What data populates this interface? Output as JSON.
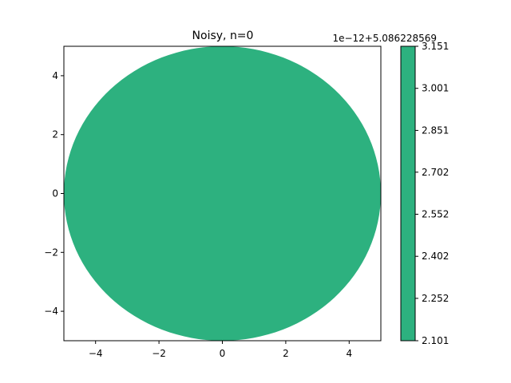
{
  "chart_data": {
    "type": "heatmap",
    "title": "Noisy, n=0",
    "xlabel": "",
    "ylabel": "",
    "xlim": [
      -5,
      5
    ],
    "ylim": [
      -5,
      5
    ],
    "x_ticks": [
      -4,
      -2,
      0,
      2,
      4
    ],
    "y_ticks": [
      -4,
      -2,
      0,
      2,
      4
    ],
    "x_tick_labels": [
      "−4",
      "−2",
      "0",
      "2",
      "4"
    ],
    "y_tick_labels": [
      "−4",
      "−2",
      "0",
      "2",
      "4"
    ],
    "region": {
      "shape": "disk",
      "center": [
        0,
        0
      ],
      "radius": 5
    },
    "field_value_offset_label": "1e−12+5.086228569",
    "colorbar": {
      "ticks": [
        3.151,
        3.001,
        2.851,
        2.702,
        2.552,
        2.402,
        2.252,
        2.101
      ],
      "tick_labels": [
        "3.151",
        "3.001",
        "2.851",
        "2.702",
        "2.552",
        "2.402",
        "2.252",
        "2.101"
      ],
      "range": [
        2.101,
        3.151
      ]
    },
    "grid": false,
    "legend": "none",
    "colors": {
      "fill": "#2db17f",
      "frame": "#000000",
      "background": "#ffffff"
    }
  }
}
